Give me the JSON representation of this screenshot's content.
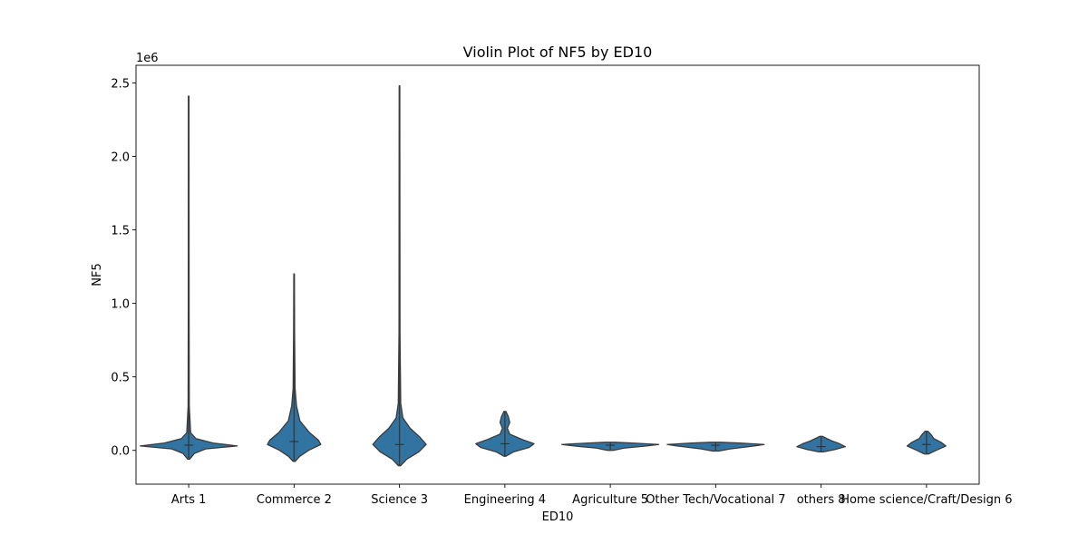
{
  "chart_data": {
    "type": "violin",
    "title": "Violin Plot of NF5 by ED10",
    "xlabel": "ED10",
    "ylabel": "NF5",
    "y_multiplier_label": "1e6",
    "ylim": [
      -230000,
      2620000
    ],
    "yticks": [
      0.0,
      0.5,
      1.0,
      1.5,
      2.0,
      2.5
    ],
    "ytick_labels": [
      "0.0",
      "0.5",
      "1.0",
      "1.5",
      "2.0",
      "2.5"
    ],
    "color": "#3274a1",
    "outline_color": "#3a3a3a",
    "grid": false,
    "categories": [
      "Arts 1",
      "Commerce 2",
      "Science 3",
      "Engineering 4",
      "Agriculture 5",
      "Other Tech/Vocational 7",
      "others 8",
      "Home science/Craft/Design 6"
    ],
    "violins": [
      {
        "category": "Arts 1",
        "min": -60000,
        "max": 2410000,
        "median": 35000,
        "profile": [
          [
            -60000,
            0.02
          ],
          [
            -20000,
            0.12
          ],
          [
            10000,
            0.35
          ],
          [
            30000,
            1.0
          ],
          [
            50000,
            0.5
          ],
          [
            80000,
            0.15
          ],
          [
            120000,
            0.04
          ],
          [
            300000,
            0.012
          ],
          [
            1000000,
            0.008
          ],
          [
            2410000,
            0.006
          ]
        ]
      },
      {
        "category": "Commerce 2",
        "min": -75000,
        "max": 1200000,
        "median": 60000,
        "profile": [
          [
            -75000,
            0.02
          ],
          [
            -40000,
            0.12
          ],
          [
            0,
            0.3
          ],
          [
            40000,
            0.55
          ],
          [
            70000,
            0.5
          ],
          [
            120000,
            0.32
          ],
          [
            200000,
            0.12
          ],
          [
            300000,
            0.05
          ],
          [
            420000,
            0.02
          ],
          [
            800000,
            0.01
          ],
          [
            1200000,
            0.006
          ]
        ]
      },
      {
        "category": "Science 3",
        "min": -105000,
        "max": 2480000,
        "median": 40000,
        "profile": [
          [
            -105000,
            0.02
          ],
          [
            -60000,
            0.15
          ],
          [
            -10000,
            0.4
          ],
          [
            40000,
            0.55
          ],
          [
            90000,
            0.42
          ],
          [
            150000,
            0.22
          ],
          [
            220000,
            0.07
          ],
          [
            320000,
            0.025
          ],
          [
            800000,
            0.01
          ],
          [
            2480000,
            0.006
          ]
        ]
      },
      {
        "category": "Engineering 4",
        "min": -40000,
        "max": 265000,
        "median": 45000,
        "profile": [
          [
            -40000,
            0.02
          ],
          [
            -10000,
            0.18
          ],
          [
            20000,
            0.5
          ],
          [
            45000,
            0.6
          ],
          [
            75000,
            0.35
          ],
          [
            110000,
            0.1
          ],
          [
            150000,
            0.05
          ],
          [
            190000,
            0.1
          ],
          [
            230000,
            0.07
          ],
          [
            265000,
            0.02
          ]
        ]
      },
      {
        "category": "Agriculture 5",
        "min": 0,
        "max": 55000,
        "median": 35000,
        "profile": [
          [
            0,
            0.06
          ],
          [
            15000,
            0.28
          ],
          [
            30000,
            0.75
          ],
          [
            40000,
            1.0
          ],
          [
            50000,
            0.45
          ],
          [
            55000,
            0.1
          ]
        ]
      },
      {
        "category": "Other Tech/Vocational 7",
        "min": -5000,
        "max": 55000,
        "median": 35000,
        "profile": [
          [
            -5000,
            0.06
          ],
          [
            10000,
            0.3
          ],
          [
            30000,
            0.8
          ],
          [
            40000,
            1.0
          ],
          [
            50000,
            0.5
          ],
          [
            55000,
            0.1
          ]
        ]
      },
      {
        "category": "others 8",
        "min": -10000,
        "max": 95000,
        "median": 25000,
        "profile": [
          [
            -10000,
            0.05
          ],
          [
            5000,
            0.28
          ],
          [
            25000,
            0.5
          ],
          [
            45000,
            0.38
          ],
          [
            65000,
            0.22
          ],
          [
            80000,
            0.12
          ],
          [
            95000,
            0.03
          ]
        ]
      },
      {
        "category": "Home science/Craft/Design 6",
        "min": -25000,
        "max": 130000,
        "median": 40000,
        "profile": [
          [
            -25000,
            0.04
          ],
          [
            0,
            0.2
          ],
          [
            30000,
            0.4
          ],
          [
            55000,
            0.3
          ],
          [
            80000,
            0.15
          ],
          [
            105000,
            0.1
          ],
          [
            130000,
            0.03
          ]
        ]
      }
    ]
  }
}
